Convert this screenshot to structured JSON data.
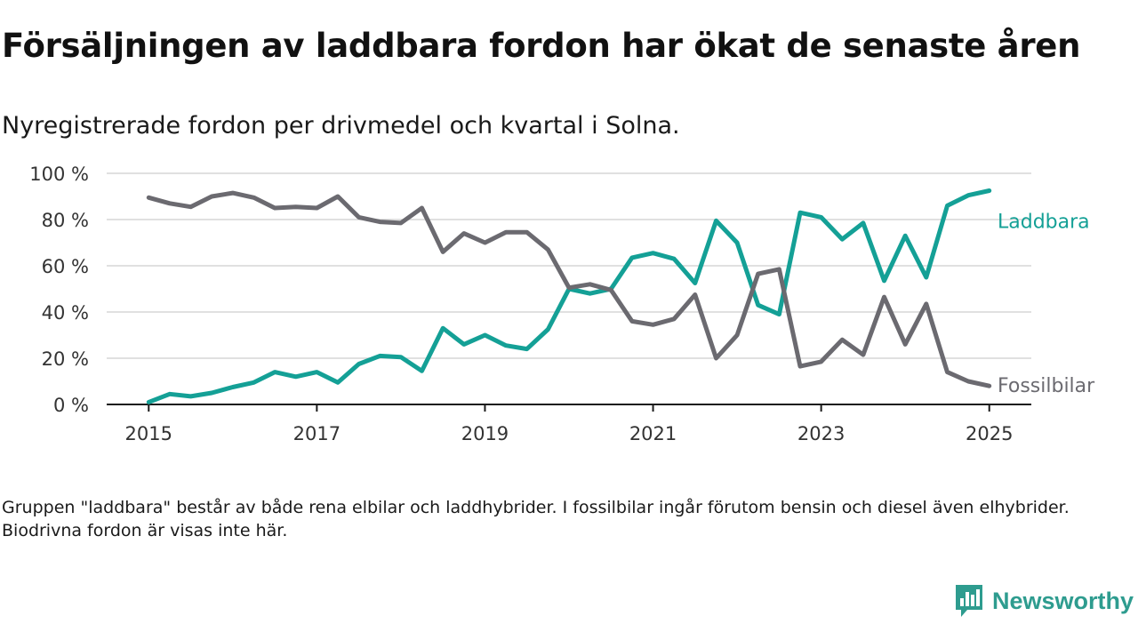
{
  "title": "Försäljningen av laddbara fordon har ökat de senaste åren",
  "subtitle": "Nyregistrerade fordon per drivmedel och kvartal i Solna.",
  "footnote": "Gruppen \"laddbara\" består av både rena elbilar och laddhybrider. I fossilbilar ingår förutom bensin och diesel även elhybrider. Biodrivna fordon är visas inte här.",
  "brand": {
    "name": "Newsworthy",
    "icon": "newsworthy-logo-icon",
    "color": "#2e9c8f"
  },
  "chart_data": {
    "type": "line",
    "title": "Försäljningen av laddbara fordon har ökat de senaste åren",
    "subtitle": "Nyregistrerade fordon per drivmedel och kvartal i Solna.",
    "xlabel": "",
    "ylabel": "",
    "xlim": [
      2014.5,
      2025.5
    ],
    "ylim": [
      0,
      100
    ],
    "x_ticks": [
      2015,
      2017,
      2019,
      2021,
      2023,
      2025
    ],
    "x_tick_labels": [
      "2015",
      "2017",
      "2019",
      "2021",
      "2023",
      "2025"
    ],
    "y_ticks": [
      0,
      20,
      40,
      60,
      80,
      100
    ],
    "y_tick_labels": [
      "0 %",
      "20 %",
      "40 %",
      "60 %",
      "80 %",
      "100 %"
    ],
    "grid": "horizontal",
    "legend": "inline-right",
    "x": [
      2015.0,
      2015.25,
      2015.5,
      2015.75,
      2016.0,
      2016.25,
      2016.5,
      2016.75,
      2017.0,
      2017.25,
      2017.5,
      2017.75,
      2018.0,
      2018.25,
      2018.5,
      2018.75,
      2019.0,
      2019.25,
      2019.5,
      2019.75,
      2020.0,
      2020.25,
      2020.5,
      2020.75,
      2021.0,
      2021.25,
      2021.5,
      2021.75,
      2022.0,
      2022.25,
      2022.5,
      2022.75,
      2023.0,
      2023.25,
      2023.5,
      2023.75,
      2024.0,
      2024.25,
      2024.5,
      2024.75,
      2025.0
    ],
    "series": [
      {
        "name": "Laddbara",
        "color": "#14a096",
        "values": [
          1,
          4.5,
          3.5,
          5,
          7.5,
          9.5,
          14,
          12,
          14,
          9.5,
          17.5,
          21,
          20.5,
          14.5,
          33,
          26,
          30,
          25.5,
          24,
          32.5,
          50,
          48,
          50,
          63.5,
          65.5,
          63,
          52.5,
          79.5,
          70,
          43,
          39,
          83,
          81,
          71.5,
          78.5,
          53.5,
          73,
          55,
          86,
          90.5,
          92.5
        ]
      },
      {
        "name": "Fossilbilar",
        "color": "#6b6a70",
        "values": [
          89.5,
          87,
          85.5,
          90,
          91.5,
          89.5,
          85,
          85.5,
          85,
          90,
          81,
          79,
          78.5,
          85,
          66,
          74,
          70,
          74.5,
          74.5,
          67,
          50.5,
          52,
          49.5,
          36,
          34.5,
          37,
          47.5,
          20,
          30,
          56.5,
          58.5,
          16.5,
          18.5,
          28,
          21.5,
          46.5,
          26,
          43.5,
          14,
          10,
          8
        ]
      }
    ]
  }
}
